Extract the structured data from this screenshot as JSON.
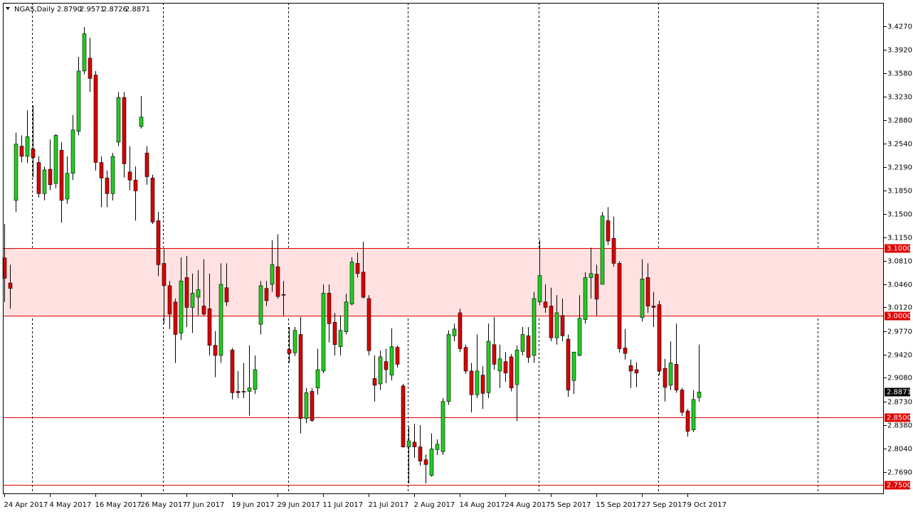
{
  "chart_data": {
    "type": "candlestick",
    "title": "NGAS,Daily",
    "header_labels": [
      "2.8790",
      "2.9571",
      "2.8726",
      "2.8871"
    ],
    "categories": [
      "24 Apr 2017",
      null,
      null,
      null,
      null,
      null,
      null,
      null,
      "4 May 2017",
      null,
      null,
      null,
      null,
      null,
      null,
      null,
      "16 May 2017",
      null,
      null,
      null,
      null,
      null,
      null,
      null,
      "26 May 2017",
      null,
      null,
      null,
      null,
      null,
      null,
      null,
      "7 Jun 2017",
      null,
      null,
      null,
      null,
      null,
      null,
      null,
      "19 Jun 2017",
      null,
      null,
      null,
      null,
      null,
      null,
      null,
      "29 Jun 2017",
      null,
      null,
      null,
      null,
      null,
      null,
      null,
      "11 Jul 2017",
      null,
      null,
      null,
      null,
      null,
      null,
      null,
      "21 Jul 2017",
      null,
      null,
      null,
      null,
      null,
      null,
      null,
      "2 Aug 2017",
      null,
      null,
      null,
      null,
      null,
      null,
      null,
      "14 Aug 2017",
      null,
      null,
      null,
      null,
      null,
      null,
      null,
      "24 Aug 2017",
      null,
      null,
      null,
      null,
      null,
      null,
      null,
      "5 Sep 2017",
      null,
      null,
      null,
      null,
      null,
      null,
      null,
      "15 Sep 2017",
      null,
      null,
      null,
      null,
      null,
      null,
      null,
      "27 Sep 2017",
      null,
      null,
      null,
      null,
      null,
      null,
      null,
      "9 Oct 2017",
      null,
      null
    ],
    "open": [
      3.085,
      3.048,
      3.17,
      3.25,
      3.235,
      3.246,
      3.226,
      3.18,
      3.216,
      3.195,
      3.244,
      3.172,
      3.21,
      3.272,
      3.361,
      3.38,
      3.355,
      3.226,
      3.203,
      3.18,
      3.256,
      3.322,
      3.212,
      3.2,
      3.279,
      3.24,
      3.203,
      3.14,
      3.077,
      3.044,
      3.02,
      2.974,
      3.056,
      3.012,
      3.027,
      3.014,
      3.01,
      2.956,
      2.941,
      3.041,
      2.949,
      2.888,
      2.888,
      2.888,
      2.891,
      2.987,
      3.04,
      3.046,
      3.072,
      3.031,
      2.95,
      2.945,
      2.972,
      2.848,
      2.888,
      2.893,
      2.918,
      3.033,
      2.99,
      2.954,
      2.976,
      3.017,
      3.077,
      3.064,
      3.025,
      2.907,
      2.899,
      2.932,
      2.912,
      2.953,
      2.896,
      2.806,
      2.813,
      2.806,
      2.787,
      2.764,
      2.802,
      2.799,
      2.873,
      2.97,
      3.004,
      2.953,
      2.918,
      2.883,
      2.912,
      2.886,
      2.957,
      2.918,
      2.932,
      2.939,
      2.898,
      2.947,
      2.97,
      2.941,
      3.02,
      3.02,
      3.014,
      2.967,
      3.0,
      2.965,
      2.904,
      2.941,
      2.994,
      3.056,
      3.061,
      3.046,
      3.14,
      3.114,
      3.077,
      2.952,
      2.926,
      2.92,
      2.997,
      3.056,
      3.014,
      3.016,
      2.922,
      2.897,
      2.928,
      2.89,
      2.859,
      2.831,
      2.879
    ],
    "high": [
      3.135,
      3.075,
      3.27,
      3.266,
      3.303,
      3.31,
      3.235,
      3.22,
      3.26,
      3.268,
      3.256,
      3.235,
      3.296,
      3.382,
      3.426,
      3.41,
      3.361,
      3.235,
      3.214,
      3.24,
      3.33,
      3.33,
      3.25,
      3.22,
      3.324,
      3.25,
      3.208,
      3.153,
      3.098,
      3.051,
      3.025,
      3.086,
      3.088,
      3.062,
      3.067,
      3.083,
      3.062,
      2.977,
      3.077,
      3.077,
      2.952,
      2.918,
      2.93,
      2.956,
      2.941,
      3.051,
      3.051,
      3.111,
      3.12,
      3.051,
      2.983,
      2.983,
      2.998,
      2.893,
      2.893,
      2.951,
      3.046,
      3.046,
      3.004,
      3.0,
      3.032,
      3.086,
      3.093,
      3.109,
      3.03,
      2.941,
      2.948,
      2.951,
      2.981,
      2.956,
      2.899,
      2.836,
      2.84,
      2.838,
      2.795,
      2.826,
      2.817,
      2.878,
      2.978,
      2.988,
      3.01,
      2.957,
      2.93,
      2.972,
      2.925,
      2.988,
      2.998,
      2.957,
      2.946,
      2.943,
      2.956,
      2.983,
      2.983,
      3.035,
      3.111,
      3.046,
      3.041,
      3.03,
      3.025,
      2.972,
      2.946,
      3.03,
      3.064,
      3.1,
      3.075,
      3.153,
      3.16,
      3.146,
      3.08,
      2.98,
      2.935,
      2.931,
      3.083,
      3.077,
      3.035,
      3.022,
      2.936,
      2.962,
      2.988,
      2.893,
      2.862,
      2.89,
      2.9571
    ],
    "low": [
      3.02,
      3.01,
      3.153,
      3.226,
      3.225,
      3.204,
      3.174,
      3.17,
      3.185,
      3.188,
      3.137,
      3.165,
      3.2,
      3.266,
      3.356,
      3.33,
      3.214,
      3.16,
      3.16,
      3.17,
      3.25,
      3.204,
      3.185,
      3.14,
      3.276,
      3.193,
      3.135,
      3.058,
      2.988,
      2.98,
      2.93,
      2.964,
      2.983,
      2.974,
      3.0,
      3.0,
      2.941,
      2.909,
      2.93,
      3.014,
      2.876,
      2.878,
      2.878,
      2.852,
      2.884,
      2.972,
      3.014,
      3.035,
      3.025,
      3.0,
      2.93,
      2.94,
      2.826,
      2.841,
      2.843,
      2.883,
      2.915,
      2.96,
      2.941,
      2.941,
      2.972,
      3.015,
      3.056,
      3.025,
      2.941,
      2.873,
      2.89,
      2.9,
      2.904,
      2.923,
      2.805,
      2.752,
      2.79,
      2.778,
      2.752,
      2.762,
      2.794,
      2.794,
      2.868,
      2.962,
      2.946,
      2.914,
      2.857,
      2.878,
      2.862,
      2.878,
      2.92,
      2.893,
      2.902,
      2.888,
      2.844,
      2.941,
      2.93,
      2.93,
      3.015,
      3.004,
      2.962,
      2.957,
      2.962,
      2.88,
      2.884,
      2.94,
      2.988,
      3.025,
      3.0,
      3.046,
      3.104,
      3.072,
      2.945,
      2.935,
      2.893,
      2.894,
      2.991,
      3.004,
      2.983,
      2.912,
      2.873,
      2.89,
      2.886,
      2.852,
      2.821,
      2.828,
      2.8726
    ],
    "close": [
      3.055,
      3.04,
      3.253,
      3.235,
      3.264,
      3.233,
      3.18,
      3.215,
      3.193,
      3.266,
      3.17,
      3.21,
      3.274,
      3.361,
      3.416,
      3.35,
      3.226,
      3.203,
      3.18,
      3.235,
      3.322,
      3.224,
      3.2,
      3.184,
      3.293,
      3.205,
      3.138,
      3.075,
      3.044,
      3.002,
      2.972,
      3.051,
      3.012,
      3.033,
      3.038,
      3.002,
      2.956,
      2.941,
      3.046,
      3.02,
      2.886,
      2.886,
      2.887,
      2.893,
      2.92,
      3.044,
      3.022,
      3.075,
      3.028,
      3.03,
      2.944,
      2.978,
      2.848,
      2.886,
      2.845,
      2.92,
      3.033,
      2.988,
      2.957,
      2.978,
      3.02,
      3.079,
      3.062,
      3.027,
      2.948,
      2.897,
      2.939,
      2.92,
      2.954,
      2.928,
      2.806,
      2.815,
      2.806,
      2.785,
      2.78,
      2.803,
      2.81,
      2.873,
      2.972,
      2.98,
      2.951,
      2.918,
      2.883,
      2.918,
      2.885,
      2.962,
      2.928,
      2.936,
      2.915,
      2.893,
      2.949,
      2.972,
      2.938,
      3.025,
      3.059,
      3.012,
      2.967,
      3.004,
      2.97,
      2.89,
      2.946,
      2.996,
      3.056,
      3.062,
      3.024,
      3.147,
      3.11,
      3.077,
      2.951,
      2.944,
      2.918,
      2.915,
      3.054,
      3.014,
      3.012,
      2.918,
      2.894,
      2.93,
      2.89,
      2.857,
      2.829,
      2.876,
      2.8871
    ],
    "up_color": "#22cc22",
    "down_color": "#d80000",
    "ylim": [
      2.7363,
      3.4606
    ],
    "yticks": [
      {
        "value": 3.427,
        "label": "3.4270"
      },
      {
        "value": 3.392,
        "label": "3.3920"
      },
      {
        "value": 3.358,
        "label": "3.3580"
      },
      {
        "value": 3.323,
        "label": "3.3230"
      },
      {
        "value": 3.288,
        "label": "3.2880"
      },
      {
        "value": 3.254,
        "label": "3.2540"
      },
      {
        "value": 3.219,
        "label": "3.2190"
      },
      {
        "value": 3.185,
        "label": "3.1850"
      },
      {
        "value": 3.15,
        "label": "3.1500"
      },
      {
        "value": 3.115,
        "label": "3.1150"
      },
      {
        "value": 3.081,
        "label": "3.0810"
      },
      {
        "value": 3.046,
        "label": "3.0460"
      },
      {
        "value": 3.012,
        "label": "3.0120"
      },
      {
        "value": 2.977,
        "label": "2.9770"
      },
      {
        "value": 2.942,
        "label": "2.9420"
      },
      {
        "value": 2.908,
        "label": "2.9080"
      },
      {
        "value": 2.873,
        "label": "2.8730"
      },
      {
        "value": 2.838,
        "label": "2.8380"
      },
      {
        "value": 2.804,
        "label": "2.8040"
      },
      {
        "value": 2.769,
        "label": "2.7690"
      }
    ],
    "levels": [
      {
        "value": 3.1,
        "label": "3.1000"
      },
      {
        "value": 3.0,
        "label": "3.0000"
      },
      {
        "value": 2.85,
        "label": "2.8500"
      },
      {
        "value": 2.75,
        "label": "2.7500"
      }
    ],
    "level_color": "#e00000",
    "zone": {
      "from": 3.0,
      "to": 3.1,
      "color": "#ffe1e1"
    },
    "price_label": "2.8871"
  }
}
